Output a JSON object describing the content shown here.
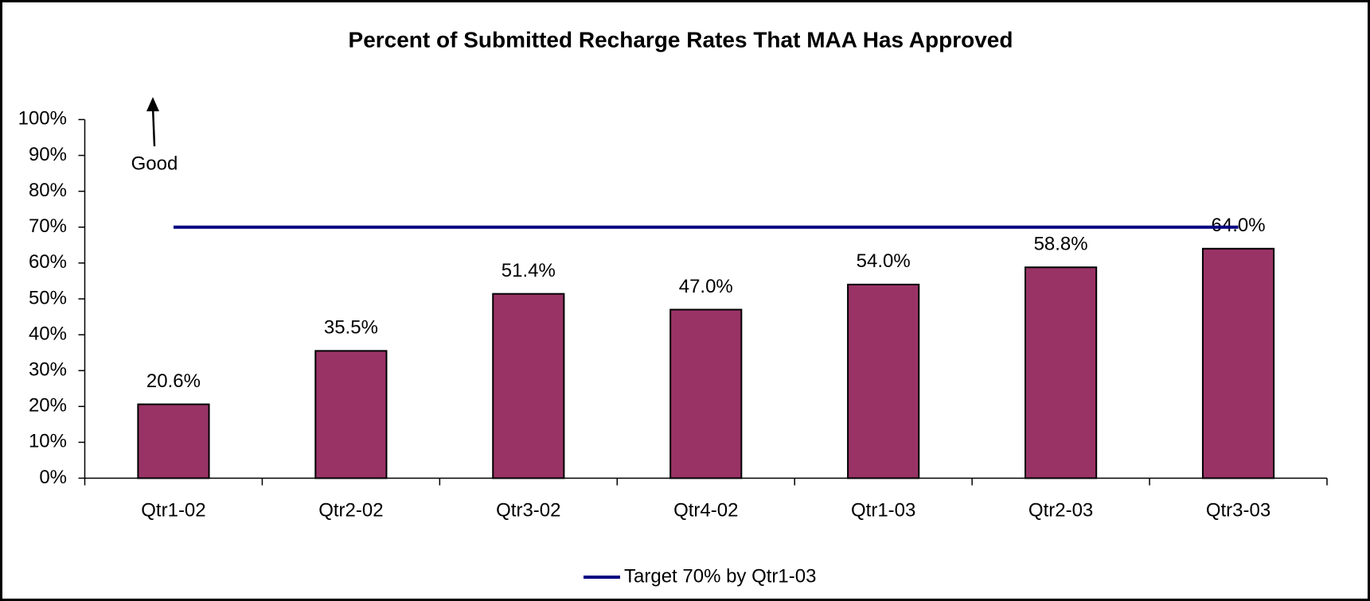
{
  "chart_data": {
    "type": "bar",
    "title": "Percent of Submitted Recharge Rates That MAA Has Approved",
    "categories": [
      "Qtr1-02",
      "Qtr2-02",
      "Qtr3-02",
      "Qtr4-02",
      "Qtr1-03",
      "Qtr2-03",
      "Qtr3-03"
    ],
    "values": [
      20.6,
      35.5,
      51.4,
      47.0,
      54.0,
      58.8,
      64.0
    ],
    "value_labels": [
      "20.6%",
      "35.5%",
      "51.4%",
      "47.0%",
      "54.0%",
      "58.8%",
      "64.0%"
    ],
    "color": "#993366",
    "target": {
      "name": "Target 70% by Qtr1-03",
      "color": "#000080",
      "values": [
        70,
        70,
        70,
        70,
        70,
        70,
        70
      ]
    },
    "annotation": "Good",
    "ylim": [
      0,
      100
    ],
    "yticks": [
      {
        "value": 0,
        "label": "0%"
      },
      {
        "value": 10,
        "label": "10%"
      },
      {
        "value": 20,
        "label": "20%"
      },
      {
        "value": 30,
        "label": "30%"
      },
      {
        "value": 40,
        "label": "40%"
      },
      {
        "value": 50,
        "label": "50%"
      },
      {
        "value": 60,
        "label": "60%"
      },
      {
        "value": 70,
        "label": "70%"
      },
      {
        "value": 80,
        "label": "80%"
      },
      {
        "value": 90,
        "label": "90%"
      },
      {
        "value": 100,
        "label": "100%"
      }
    ],
    "grid": false,
    "legend": "bottom"
  }
}
